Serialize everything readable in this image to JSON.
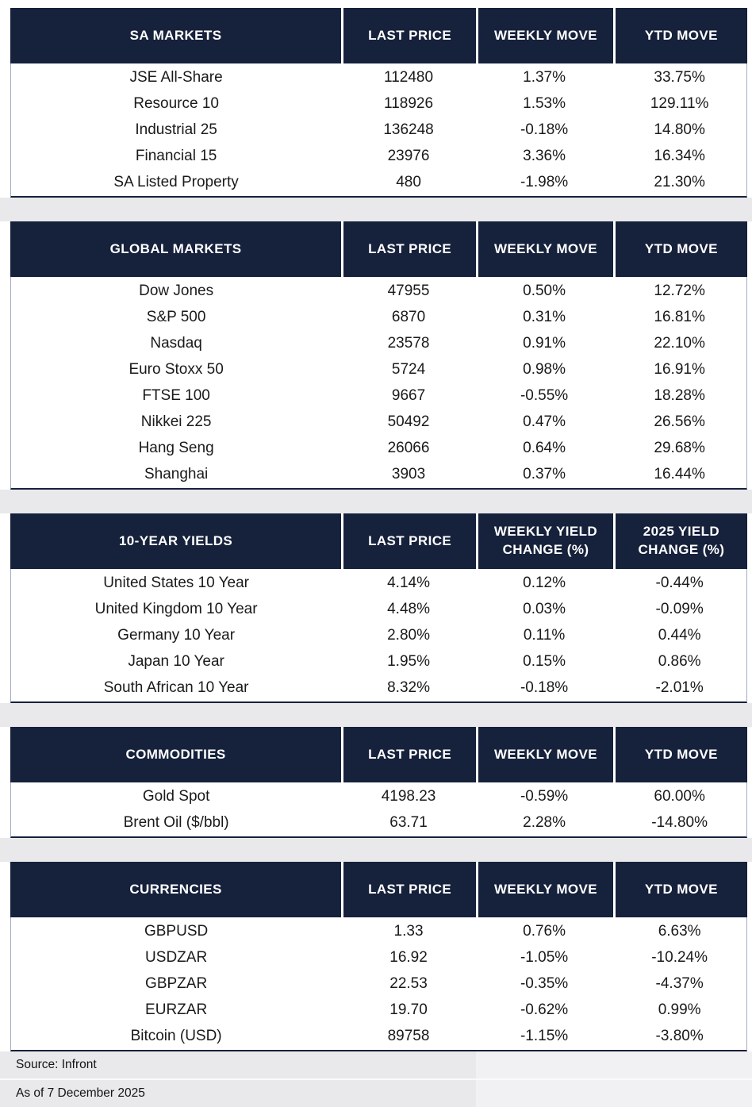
{
  "tables": [
    {
      "id": "sa-markets",
      "title": "SA MARKETS",
      "columns": [
        "LAST PRICE",
        "WEEKLY MOVE",
        "YTD MOVE"
      ],
      "rows": [
        [
          "JSE All-Share",
          "112480",
          "1.37%",
          "33.75%"
        ],
        [
          "Resource 10",
          "118926",
          "1.53%",
          "129.11%"
        ],
        [
          "Industrial 25",
          "136248",
          "-0.18%",
          "14.80%"
        ],
        [
          "Financial 15",
          "23976",
          "3.36%",
          "16.34%"
        ],
        [
          "SA Listed Property",
          "480",
          "-1.98%",
          "21.30%"
        ]
      ]
    },
    {
      "id": "global-markets",
      "title": "GLOBAL MARKETS",
      "columns": [
        "LAST PRICE",
        "WEEKLY MOVE",
        "YTD MOVE"
      ],
      "rows": [
        [
          "Dow Jones",
          "47955",
          "0.50%",
          "12.72%"
        ],
        [
          "S&P 500",
          "6870",
          "0.31%",
          "16.81%"
        ],
        [
          "Nasdaq",
          "23578",
          "0.91%",
          "22.10%"
        ],
        [
          "Euro Stoxx 50",
          "5724",
          "0.98%",
          "16.91%"
        ],
        [
          "FTSE 100",
          "9667",
          "-0.55%",
          "18.28%"
        ],
        [
          "Nikkei 225",
          "50492",
          "0.47%",
          "26.56%"
        ],
        [
          "Hang Seng",
          "26066",
          "0.64%",
          "29.68%"
        ],
        [
          "Shanghai",
          "3903",
          "0.37%",
          "16.44%"
        ]
      ]
    },
    {
      "id": "10-year-yields",
      "title": "10-YEAR YIELDS",
      "columns": [
        "LAST PRICE",
        "WEEKLY YIELD\nCHANGE (%)",
        "2025 YIELD\nCHANGE (%)"
      ],
      "rows": [
        [
          "United States 10 Year",
          "4.14%",
          "0.12%",
          "-0.44%"
        ],
        [
          "United Kingdom 10 Year",
          "4.48%",
          "0.03%",
          "-0.09%"
        ],
        [
          "Germany 10 Year",
          "2.80%",
          "0.11%",
          "0.44%"
        ],
        [
          "Japan 10 Year",
          "1.95%",
          "0.15%",
          "0.86%"
        ],
        [
          "South African 10 Year",
          "8.32%",
          "-0.18%",
          "-2.01%"
        ]
      ]
    },
    {
      "id": "commodities",
      "title": "COMMODITIES",
      "columns": [
        "LAST PRICE",
        "WEEKLY MOVE",
        "YTD MOVE"
      ],
      "rows": [
        [
          "Gold Spot",
          "4198.23",
          "-0.59%",
          "60.00%"
        ],
        [
          "Brent Oil ($/bbl)",
          "63.71",
          "2.28%",
          "-14.80%"
        ]
      ]
    },
    {
      "id": "currencies",
      "title": "CURRENCIES",
      "columns": [
        "LAST PRICE",
        "WEEKLY MOVE",
        "YTD MOVE"
      ],
      "rows": [
        [
          "GBPUSD",
          "1.33",
          "0.76%",
          "6.63%"
        ],
        [
          "USDZAR",
          "16.92",
          "-1.05%",
          "-10.24%"
        ],
        [
          "GBPZAR",
          "22.53",
          "-0.35%",
          "-4.37%"
        ],
        [
          "EURZAR",
          "19.70",
          "-0.62%",
          "0.99%"
        ],
        [
          "Bitcoin (USD)",
          "89758",
          "-1.15%",
          "-3.80%"
        ]
      ]
    }
  ],
  "footer": {
    "source": "Source: Infront",
    "as_of": "As of 7 December 2025"
  },
  "colors": {
    "header_bg": "#16213B",
    "header_text": "#FFFFFF",
    "body_text": "#1A1A1A",
    "gap_bg": "#E9E9EB",
    "body_border": "#9FACC0"
  }
}
